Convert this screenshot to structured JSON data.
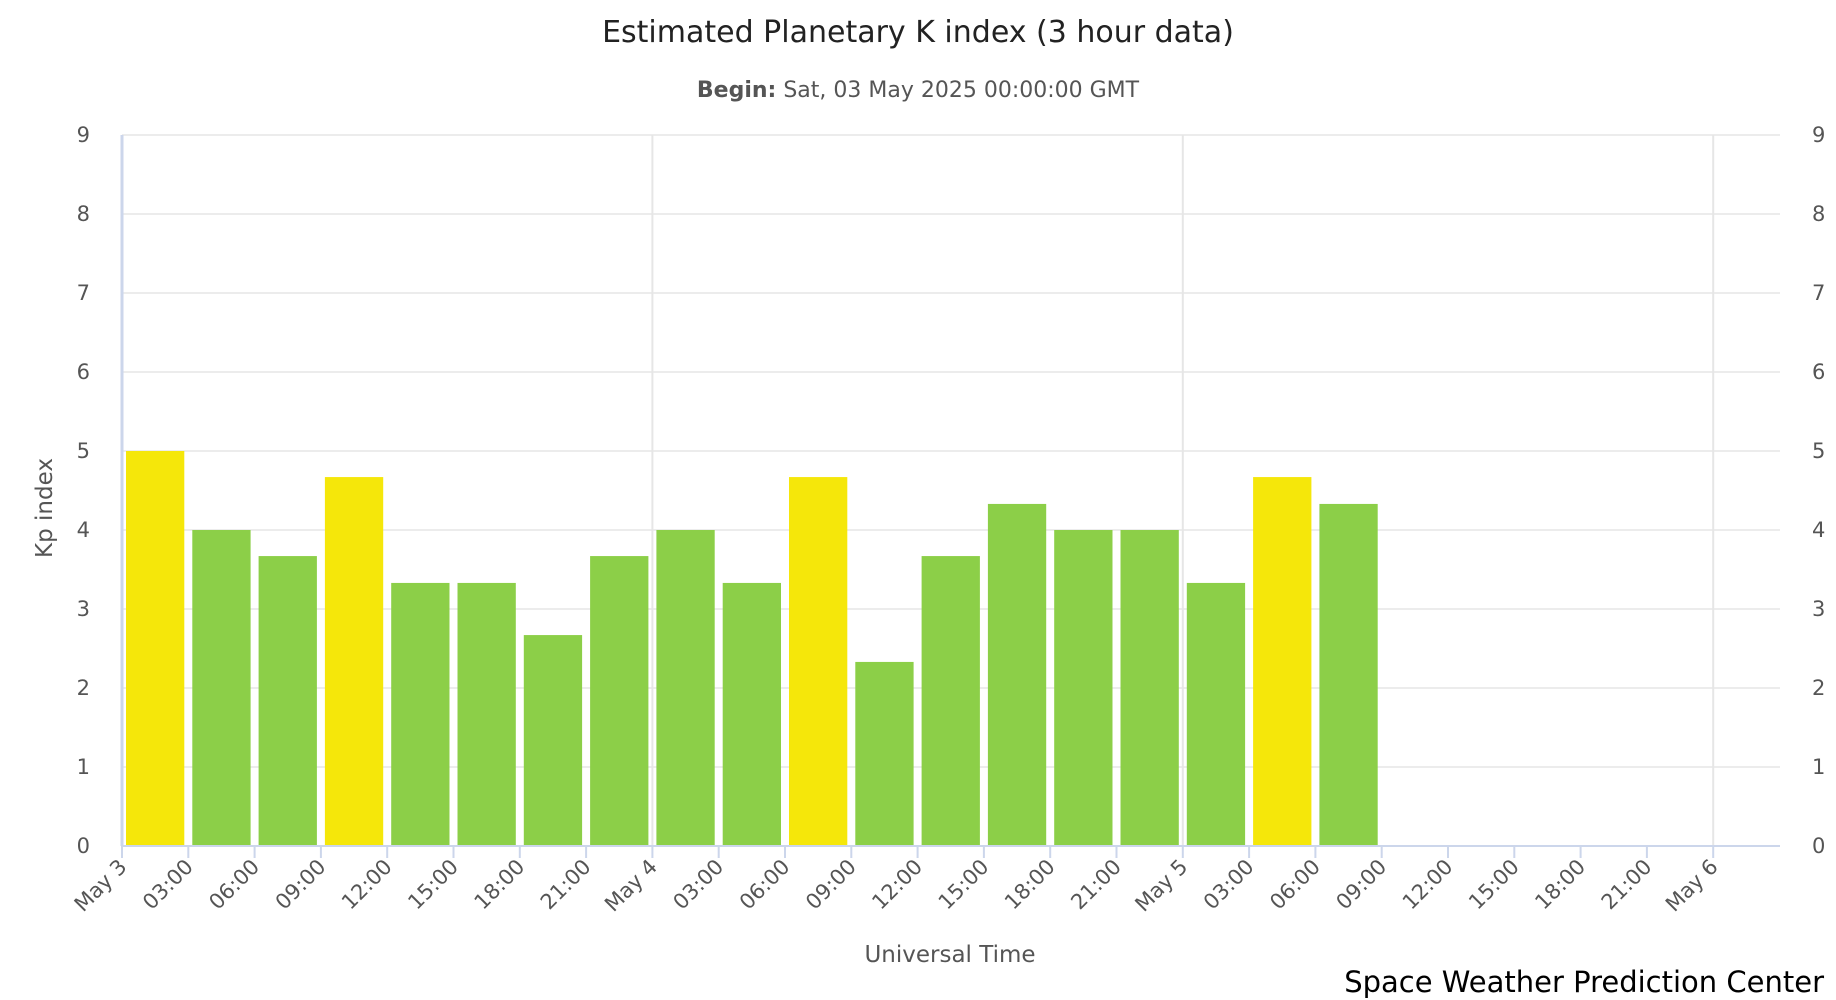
{
  "chart_data": {
    "type": "bar",
    "title": "Estimated Planetary K index (3 hour data)",
    "subtitle_label": "Begin:",
    "subtitle_value": "Sat, 03 May 2025 00:00:00 GMT",
    "xlabel": "Universal Time",
    "ylabel": "Kp index",
    "credit": "Space Weather Prediction Center",
    "ylim": [
      0,
      9
    ],
    "y_ticks": [
      "0",
      "1",
      "2",
      "3",
      "4",
      "5",
      "6",
      "7",
      "8",
      "9"
    ],
    "x_ticks": [
      "May 3",
      "03:00",
      "06:00",
      "09:00",
      "12:00",
      "15:00",
      "18:00",
      "21:00",
      "May 4",
      "03:00",
      "06:00",
      "09:00",
      "12:00",
      "15:00",
      "18:00",
      "21:00",
      "May 5",
      "03:00",
      "06:00",
      "09:00",
      "12:00",
      "15:00",
      "18:00",
      "21:00",
      "May 6"
    ],
    "grid": true,
    "legend": "none",
    "values": [
      5.0,
      4.0,
      3.67,
      4.67,
      3.33,
      3.33,
      2.67,
      3.67,
      4.0,
      3.33,
      4.67,
      2.33,
      3.67,
      4.33,
      4.0,
      4.0,
      3.33,
      4.67,
      4.33
    ],
    "colors": {
      "below_storm": "#8ccf48",
      "active": "#f5e70a",
      "grid": "#e6e6e6",
      "axis": "#ccd6eb"
    }
  }
}
